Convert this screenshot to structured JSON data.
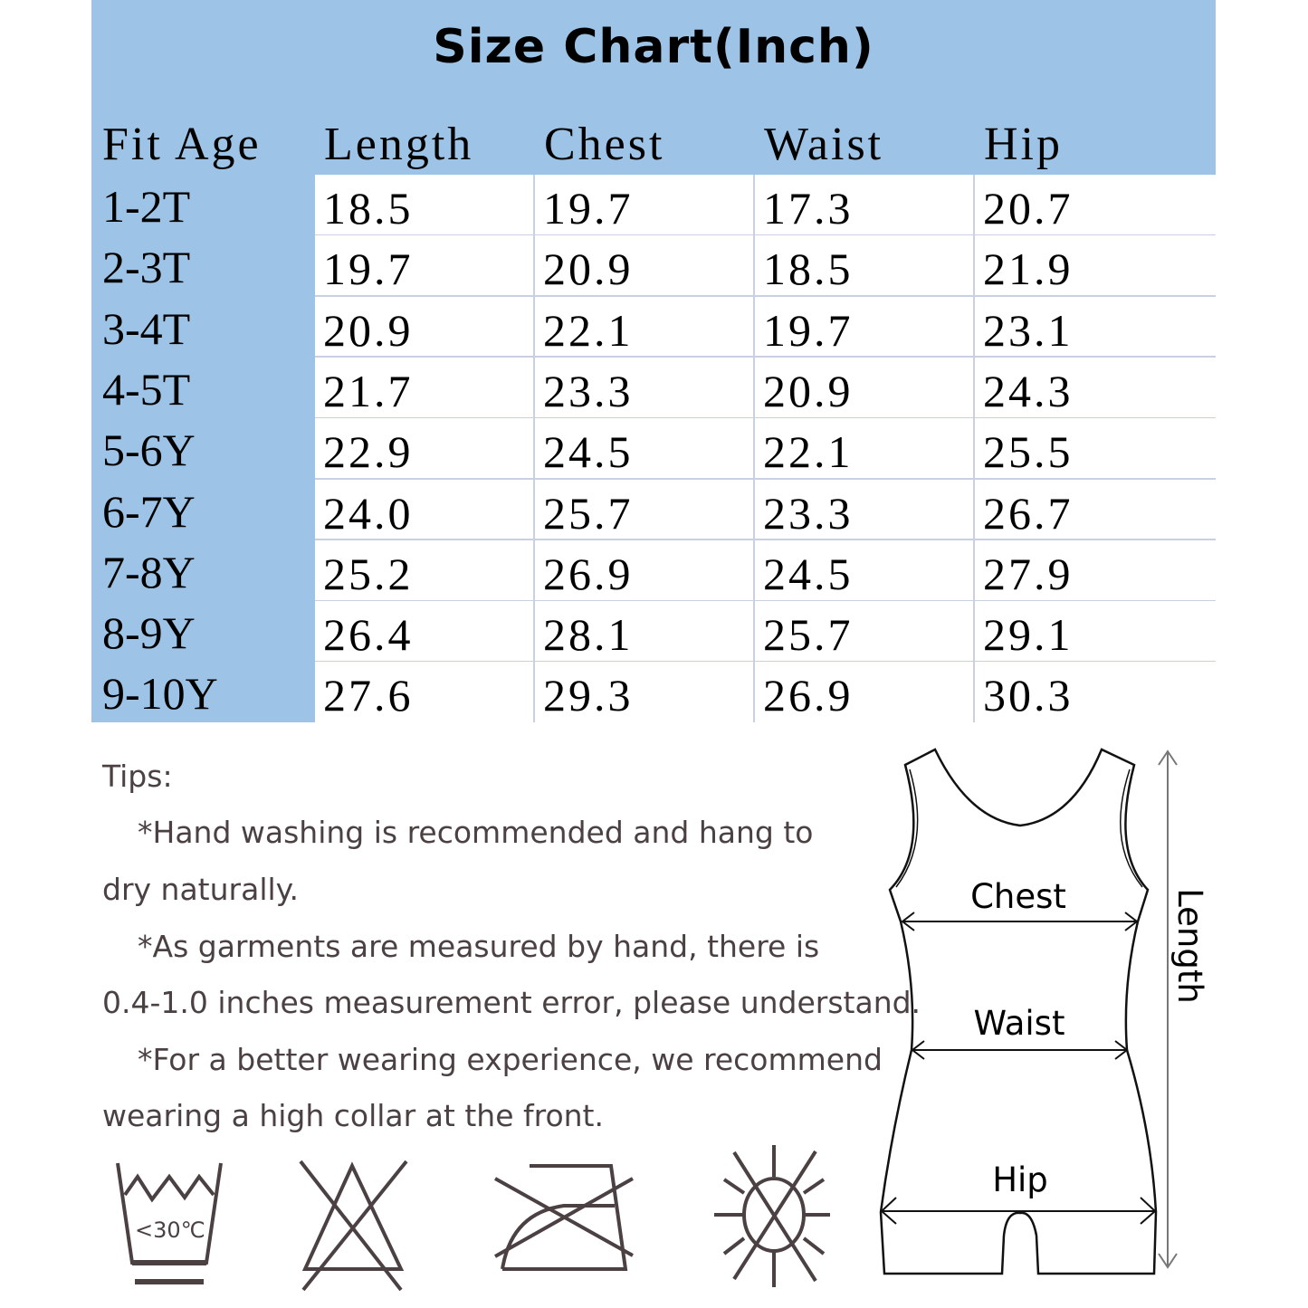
{
  "title": "Size Chart(Inch)",
  "colors": {
    "header_blue": "#9dc3e6",
    "grid": "#c9d0e2",
    "tips_text": "#4b4142",
    "icon_stroke": "#4b4142"
  },
  "table": {
    "headers": [
      "Fit Age",
      "Length",
      "Chest",
      "Waist",
      "Hip"
    ],
    "rows": [
      [
        "1-2T",
        "18.5",
        "19.7",
        "17.3",
        "20.7"
      ],
      [
        "2-3T",
        "19.7",
        "20.9",
        "18.5",
        "21.9"
      ],
      [
        "3-4T",
        "20.9",
        "22.1",
        "19.7",
        "23.1"
      ],
      [
        "4-5T",
        "21.7",
        "23.3",
        "20.9",
        "24.3"
      ],
      [
        "5-6Y",
        "22.9",
        "24.5",
        "22.1",
        "25.5"
      ],
      [
        "6-7Y",
        "24.0",
        "25.7",
        "23.3",
        "26.7"
      ],
      [
        "7-8Y",
        "25.2",
        "26.9",
        "24.5",
        "27.9"
      ],
      [
        "8-9Y",
        "26.4",
        "28.1",
        "25.7",
        "29.1"
      ],
      [
        "9-10Y",
        "27.6",
        "29.3",
        "26.9",
        "30.3"
      ]
    ]
  },
  "tips": {
    "heading": "Tips:",
    "lines": [
      "*Hand washing is recommended and hang to",
      "dry naturally.",
      "*As garments are measured by hand, there is",
      "0.4-1.0 inches measurement error, please understand.",
      "*For a better wearing experience, we recommend",
      "wearing a high collar at the front."
    ]
  },
  "care_icons": [
    {
      "icon": "hand-wash-icon",
      "label": "<30℃"
    },
    {
      "icon": "do-not-bleach-icon"
    },
    {
      "icon": "do-not-iron-icon"
    },
    {
      "icon": "do-not-sun-dry-icon"
    }
  ],
  "diagram": {
    "chest": "Chest",
    "waist": "Waist",
    "hip": "Hip",
    "length": "Length"
  }
}
